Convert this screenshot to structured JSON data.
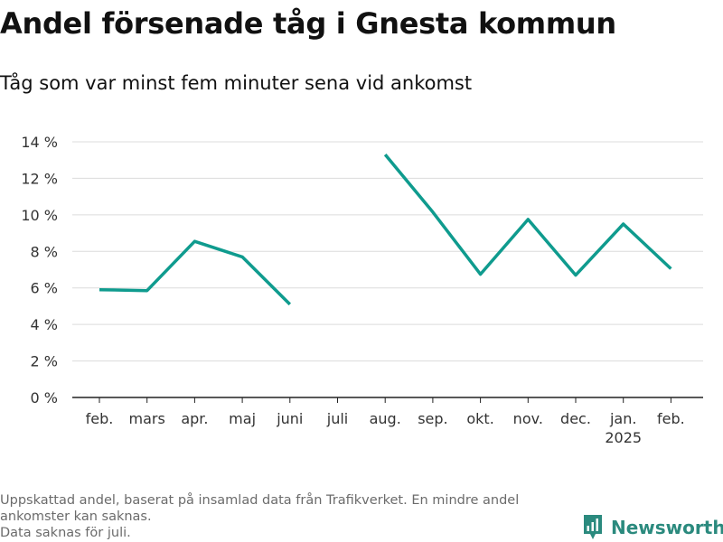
{
  "title": "Andel försenade tåg i Gnesta kommun",
  "subtitle": "Tåg som var minst fem minuter sena vid ankomst",
  "footnote": {
    "line1": "Uppskattad andel, baserat på insamlad data från Trafikverket. En mindre andel ankomster kan saknas.",
    "line2": "Data saknas för juli."
  },
  "brand": {
    "name": "Newsworthy",
    "icon": "newsworthy-logo-icon",
    "color": "#2b8a7e"
  },
  "chart_data": {
    "type": "line",
    "categories": [
      "feb.",
      "mars",
      "apr.",
      "maj",
      "juni",
      "juli",
      "aug.",
      "sep.",
      "okt.",
      "nov.",
      "dec.",
      "jan.",
      "feb."
    ],
    "category_sublabels": [
      "",
      "",
      "",
      "",
      "",
      "",
      "",
      "",
      "",
      "",
      "",
      "2025",
      ""
    ],
    "series": [
      {
        "values": [
          5.9,
          5.85,
          8.55,
          7.7,
          5.1,
          null,
          13.3,
          10.15,
          6.75,
          9.75,
          6.7,
          9.5,
          7.05
        ],
        "color": "#0f9b8e"
      }
    ],
    "ylim": [
      0,
      14
    ],
    "yticks": [
      0,
      2,
      4,
      6,
      8,
      10,
      12,
      14
    ],
    "ytick_labels": [
      "0 %",
      "2 %",
      "4 %",
      "6 %",
      "8 %",
      "10 %",
      "12 %",
      "14 %"
    ],
    "xlabel": "",
    "ylabel": "",
    "grid": true
  }
}
